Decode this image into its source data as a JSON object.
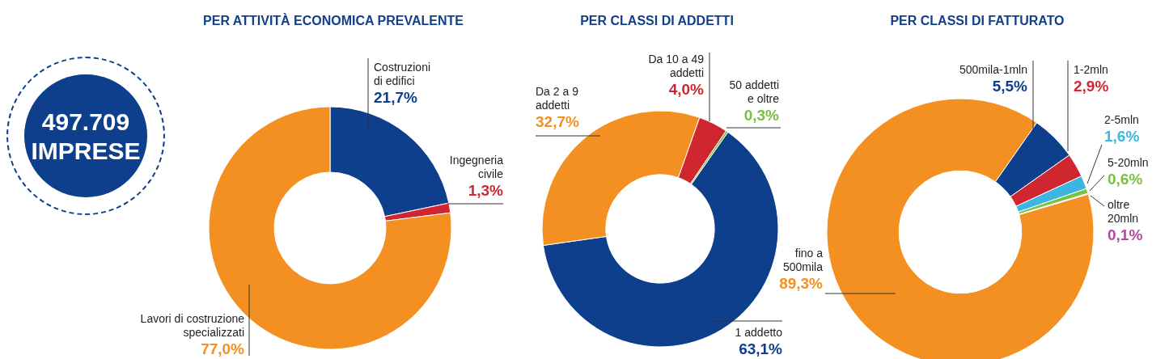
{
  "chart_data": [
    {
      "type": "other",
      "annotations": [
        "497.709",
        "IMPRESE"
      ]
    },
    {
      "type": "donut",
      "title": "PER ATTIVITÀ ECONOMICA PREVALENTE",
      "categories": [
        "Costruzioni di edifici",
        "Ingegneria civile",
        "Lavori di costruzione specializzati"
      ],
      "values": [
        21.7,
        1.3,
        77.0
      ],
      "value_labels": [
        "21,7%",
        "1,3%",
        "77,0%"
      ],
      "colors": [
        "#0d3f8c",
        "#d0262f",
        "#f39021"
      ],
      "legend": false
    },
    {
      "type": "donut",
      "title": "PER CLASSI DI ADDETTI",
      "categories": [
        "1 addetto",
        "Da 2 a 9 addetti",
        "Da 10 a 49 addetti",
        "50 addetti e oltre"
      ],
      "values": [
        63.1,
        32.7,
        4.0,
        0.3
      ],
      "value_labels": [
        "63,1%",
        "32,7%",
        "4,0%",
        "0,3%"
      ],
      "colors": [
        "#0d3f8c",
        "#f39021",
        "#d0262f",
        "#7ac143"
      ],
      "legend": false
    },
    {
      "type": "donut",
      "title": "PER CLASSI DI FATTURATO",
      "categories": [
        "fino a 500mila",
        "500mila-1mln",
        "1-2mln",
        "2-5mln",
        "5-20mln",
        "oltre 20mln"
      ],
      "values": [
        89.3,
        5.5,
        2.9,
        1.6,
        0.6,
        0.1
      ],
      "value_labels": [
        "89,3%",
        "5,5%",
        "2,9%",
        "1,6%",
        "0,6%",
        "0,1%"
      ],
      "colors": [
        "#f39021",
        "#0d3f8c",
        "#d0262f",
        "#3bb6e3",
        "#7ac143",
        "#b04a9f"
      ],
      "legend": false
    }
  ]
}
